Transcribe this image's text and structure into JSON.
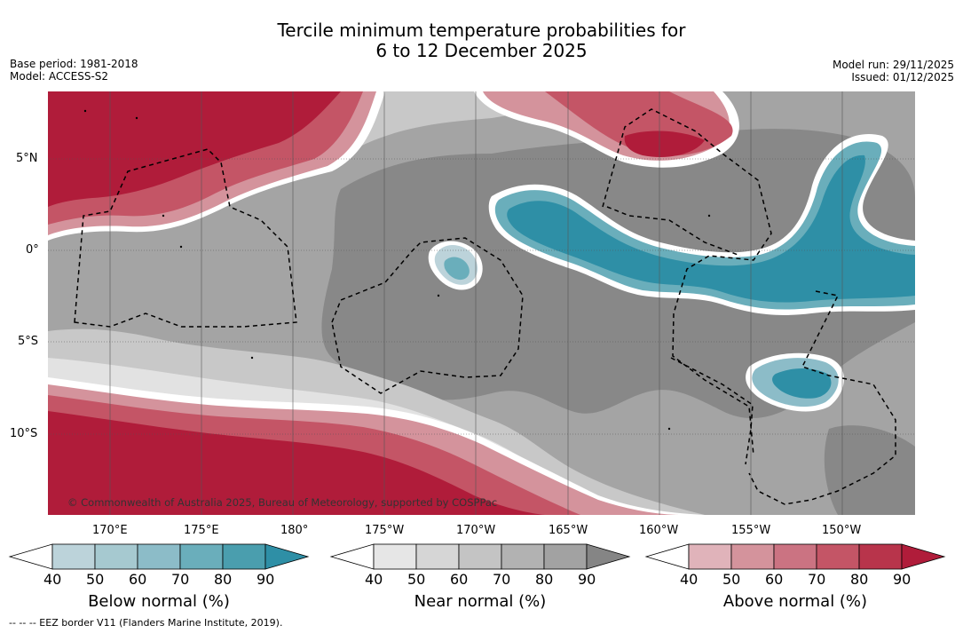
{
  "title": {
    "line1": "Tercile minimum temperature probabilities for",
    "line2": "6 to 12 December 2025"
  },
  "meta": {
    "base_period": "Base period: 1981-2018",
    "model": "Model: ACCESS-S2",
    "model_run": "Model run: 29/11/2025",
    "issued": "Issued: 01/12/2025"
  },
  "map": {
    "latitude_labels": [
      "5°N",
      "0°",
      "5°S",
      "10°S"
    ],
    "longitude_labels": [
      "170°E",
      "175°E",
      "180°",
      "175°W",
      "170°W",
      "165°W",
      "160°W",
      "155°W",
      "150°W"
    ],
    "copyright": "© Commonwealth of Australia 2025, Bureau of Meteorology, supported by COSPPac"
  },
  "colorbars": [
    {
      "title": "Below normal (%)",
      "ticks": [
        "40",
        "50",
        "60",
        "70",
        "80",
        "90"
      ],
      "colors": [
        "#ffffff",
        "#bcd3da",
        "#a6c9d0",
        "#8cbcc8",
        "#6aaebb",
        "#4a9eae",
        "#2e8fa6"
      ]
    },
    {
      "title": "Near normal (%)",
      "ticks": [
        "40",
        "50",
        "60",
        "70",
        "80",
        "90"
      ],
      "colors": [
        "#ffffff",
        "#e6e6e6",
        "#d6d6d6",
        "#c4c4c4",
        "#b2b2b2",
        "#a2a2a2",
        "#858585"
      ]
    },
    {
      "title": "Above normal (%)",
      "ticks": [
        "40",
        "50",
        "60",
        "70",
        "80",
        "90"
      ],
      "colors": [
        "#ffffff",
        "#e0b3ba",
        "#d4939c",
        "#cb7382",
        "#c45566",
        "#b8344b",
        "#b01c3a"
      ]
    }
  ],
  "footer": "--  --  -- EEZ border V11 (Flanders Marine Institute, 2019)."
}
